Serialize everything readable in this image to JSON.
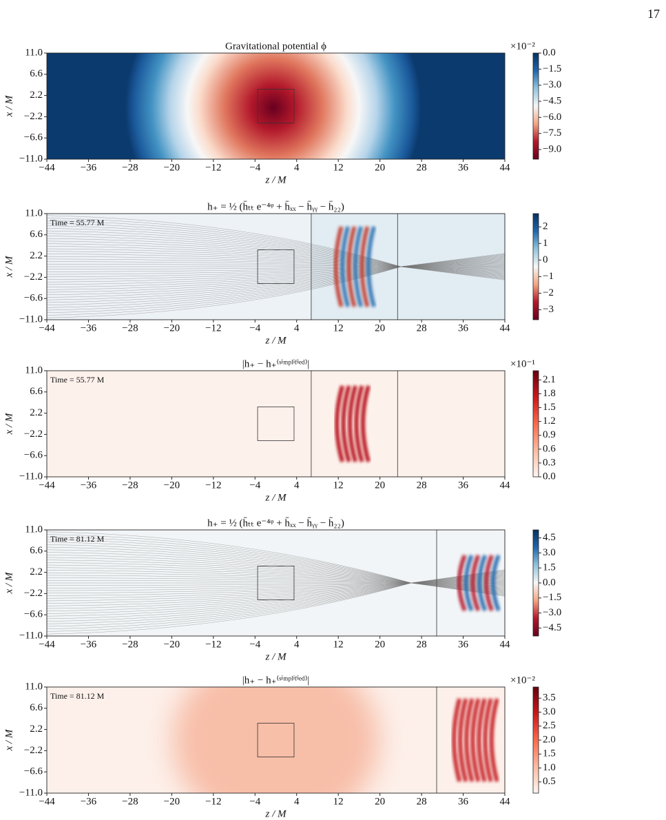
{
  "page_number": "17",
  "chart_data": [
    {
      "type": "heatmap",
      "title": "Gravitational potential ϕ",
      "xlabel": "z / M",
      "ylabel": "x / M",
      "xlim": [
        -44,
        44
      ],
      "ylim": [
        -11,
        11
      ],
      "xticks": [
        {
          "value": -44,
          "label": "−44"
        },
        {
          "value": -36,
          "label": "−36"
        },
        {
          "value": -28,
          "label": "−28"
        },
        {
          "value": -20,
          "label": "−20"
        },
        {
          "value": -12,
          "label": "−12"
        },
        {
          "value": -4,
          "label": "−4"
        },
        4,
        12,
        20,
        28,
        36,
        44
      ],
      "yticks": [
        {
          "value": 11,
          "label": "11.0"
        },
        6.6,
        2.2,
        {
          "value": -2.2,
          "label": "−2.2"
        },
        {
          "value": -6.6,
          "label": "−6.6"
        },
        {
          "value": -11,
          "label": "−11.0"
        }
      ],
      "box": {
        "z": [
          -3.5,
          3.5
        ],
        "x": [
          -3.5,
          3.5
        ]
      },
      "colorbar": {
        "lim": [
          -9.9,
          0
        ],
        "scale": "×10⁻²",
        "colors": [
          "#053061",
          "#2166ac",
          "#92c5de",
          "#f7f7f7",
          "#f4a582",
          "#b2182b",
          "#67001f"
        ],
        "ticks": [
          {
            "value": 0,
            "label": "0.0"
          },
          {
            "value": -1.5,
            "label": "−1.5"
          },
          {
            "value": -3,
            "label": "−3.0"
          },
          {
            "value": -4.5,
            "label": "−4.5"
          },
          {
            "value": -6,
            "label": "−6.0"
          },
          {
            "value": -7.5,
            "label": "−7.5"
          },
          {
            "value": -9,
            "label": "−9.0"
          }
        ]
      }
    },
    {
      "type": "heatmap",
      "title": "h₊ = ½ (h̄ₜₜ e⁻⁴ᵠ + h̄ₓₓ − h̄ᵧᵧ − h̄₂₂)",
      "xlabel": "z / M",
      "ylabel": "x / M",
      "annotation": "Time = 55.77 M",
      "xlim": [
        -44,
        44
      ],
      "ylim": [
        -11,
        11
      ],
      "xticks": [
        {
          "value": -44,
          "label": "−44"
        },
        {
          "value": -36,
          "label": "−36"
        },
        {
          "value": -28,
          "label": "−28"
        },
        {
          "value": -20,
          "label": "−20"
        },
        {
          "value": -12,
          "label": "−12"
        },
        {
          "value": -4,
          "label": "−4"
        },
        4,
        12,
        20,
        28,
        36,
        44
      ],
      "yticks": [
        {
          "value": 11,
          "label": "11.0"
        },
        6.6,
        2.2,
        {
          "value": -2.2,
          "label": "−2.2"
        },
        {
          "value": -6.6,
          "label": "−6.6"
        },
        {
          "value": -11,
          "label": "−11.0"
        }
      ],
      "box": {
        "z": [
          -3.5,
          3.5
        ],
        "x": [
          -3.5,
          3.5
        ]
      },
      "vlines": [
        6.8,
        23.4
      ],
      "colorbar": {
        "lim": [
          -3.6,
          2.8
        ],
        "colors": [
          "#053061",
          "#2166ac",
          "#92c5de",
          "#f7f7f7",
          "#f4a582",
          "#b2182b",
          "#67001f"
        ],
        "ticks": [
          2,
          1,
          0,
          {
            "value": -1,
            "label": "−1"
          },
          {
            "value": -2,
            "label": "−2"
          },
          {
            "value": -3,
            "label": "−3"
          }
        ]
      }
    },
    {
      "type": "heatmap",
      "title": "|h₊ − h₊⁽ˢⁱᵐᵖˡⁱᶠⁱᵉᵈ⁾|",
      "xlabel": "z / M",
      "ylabel": "x / M",
      "annotation": "Time = 55.77 M",
      "xlim": [
        -44,
        44
      ],
      "ylim": [
        -11,
        11
      ],
      "xticks": [
        {
          "value": -44,
          "label": "−44"
        },
        {
          "value": -36,
          "label": "−36"
        },
        {
          "value": -28,
          "label": "−28"
        },
        {
          "value": -20,
          "label": "−20"
        },
        {
          "value": -12,
          "label": "−12"
        },
        {
          "value": -4,
          "label": "−4"
        },
        4,
        12,
        20,
        28,
        36,
        44
      ],
      "yticks": [
        {
          "value": 11,
          "label": "11.0"
        },
        6.6,
        2.2,
        {
          "value": -2.2,
          "label": "−2.2"
        },
        {
          "value": -6.6,
          "label": "−6.6"
        },
        {
          "value": -11,
          "label": "−11.0"
        }
      ],
      "box": {
        "z": [
          -3.5,
          3.5
        ],
        "x": [
          -3.5,
          3.5
        ]
      },
      "vlines": [
        6.8,
        23.4
      ],
      "colorbar": {
        "lim": [
          0,
          2.3
        ],
        "scale": "×10⁻¹",
        "colors": [
          "#67000d",
          "#cb181d",
          "#fb6a4a",
          "#fcbba1",
          "#fff5f0"
        ],
        "ticks": [
          2.1,
          1.8,
          1.5,
          1.2,
          0.9,
          0.6,
          0.3,
          {
            "value": 0,
            "label": "0.0"
          }
        ]
      }
    },
    {
      "type": "heatmap",
      "title": "h₊ = ½ (h̄ₜₜ e⁻⁴ᵠ + h̄ₓₓ − h̄ᵧᵧ − h̄₂₂)",
      "xlabel": "z / M",
      "ylabel": "x / M",
      "annotation": "Time = 81.12 M",
      "xlim": [
        -44,
        44
      ],
      "ylim": [
        -11,
        11
      ],
      "xticks": [
        {
          "value": -44,
          "label": "−44"
        },
        {
          "value": -36,
          "label": "−36"
        },
        {
          "value": -28,
          "label": "−28"
        },
        {
          "value": -20,
          "label": "−20"
        },
        {
          "value": -12,
          "label": "−12"
        },
        {
          "value": -4,
          "label": "−4"
        },
        4,
        12,
        20,
        28,
        36,
        44
      ],
      "yticks": [
        {
          "value": 11,
          "label": "11.0"
        },
        6.6,
        2.2,
        {
          "value": -2.2,
          "label": "−2.2"
        },
        {
          "value": -6.6,
          "label": "−6.6"
        },
        {
          "value": -11,
          "label": "−11.0"
        }
      ],
      "box": {
        "z": [
          -3.5,
          3.5
        ],
        "x": [
          -3.5,
          3.5
        ]
      },
      "vlines": [
        30.9
      ],
      "colorbar": {
        "lim": [
          -5.3,
          5.3
        ],
        "colors": [
          "#053061",
          "#2166ac",
          "#92c5de",
          "#f7f7f7",
          "#f4a582",
          "#b2182b",
          "#67001f"
        ],
        "ticks": [
          4.5,
          {
            "value": 3,
            "label": "3.0"
          },
          1.5,
          {
            "value": 0,
            "label": "0.0"
          },
          {
            "value": -1.5,
            "label": "−1.5"
          },
          {
            "value": -3,
            "label": "−3.0"
          },
          {
            "value": -4.5,
            "label": "−4.5"
          }
        ]
      }
    },
    {
      "type": "heatmap",
      "title": "|h₊ − h₊⁽ˢⁱᵐᵖˡⁱᶠⁱᵉᵈ⁾|",
      "xlabel": "z / M",
      "ylabel": "x / M",
      "annotation": "Time = 81.12 M",
      "xlim": [
        -44,
        44
      ],
      "ylim": [
        -11,
        11
      ],
      "xticks": [
        {
          "value": -44,
          "label": "−44"
        },
        {
          "value": -36,
          "label": "−36"
        },
        {
          "value": -28,
          "label": "−28"
        },
        {
          "value": -20,
          "label": "−20"
        },
        {
          "value": -12,
          "label": "−12"
        },
        {
          "value": -4,
          "label": "−4"
        },
        4,
        12,
        20,
        28,
        36,
        44
      ],
      "yticks": [
        {
          "value": 11,
          "label": "11.0"
        },
        6.6,
        2.2,
        {
          "value": -2.2,
          "label": "−2.2"
        },
        {
          "value": -6.6,
          "label": "−6.6"
        },
        {
          "value": -11,
          "label": "−11.0"
        }
      ],
      "box": {
        "z": [
          -3.5,
          3.5
        ],
        "x": [
          -3.5,
          3.5
        ]
      },
      "vlines": [
        30.9
      ],
      "colorbar": {
        "lim": [
          0.1,
          3.9
        ],
        "scale": "×10⁻²",
        "colors": [
          "#67000d",
          "#cb181d",
          "#fb6a4a",
          "#fcbba1",
          "#fff5f0"
        ],
        "ticks": [
          3.5,
          {
            "value": 3,
            "label": "3.0"
          },
          2.5,
          {
            "value": 2,
            "label": "2.0"
          },
          1.5,
          {
            "value": 1,
            "label": "1.0"
          },
          0.5
        ]
      }
    }
  ]
}
